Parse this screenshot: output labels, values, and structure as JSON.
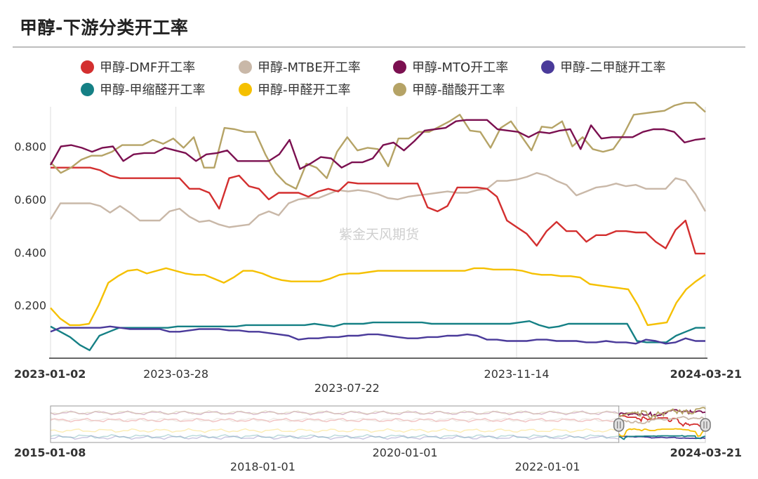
{
  "title": "甲醇-下游分类开工率",
  "watermark": "紫金天风期货",
  "chart_data": {
    "type": "line",
    "ylim": [
      0.0,
      0.95
    ],
    "yticks": [
      0.2,
      0.4,
      0.6,
      0.8
    ],
    "ytick_labels": [
      "0.200",
      "0.400",
      "0.600",
      "0.800"
    ],
    "xrange": [
      "2023-01-02",
      "2024-03-21"
    ],
    "xticks": [
      {
        "date": "2023-01-02",
        "label": "2023-01-02",
        "bold": true,
        "row": 1
      },
      {
        "date": "2023-03-28",
        "label": "2023-03-28",
        "bold": false,
        "row": 1
      },
      {
        "date": "2023-07-22",
        "label": "2023-07-22",
        "bold": false,
        "row": 2
      },
      {
        "date": "2023-11-14",
        "label": "2023-11-14",
        "bold": false,
        "row": 1
      },
      {
        "date": "2024-03-21",
        "label": "2024-03-21",
        "bold": true,
        "row": 1
      }
    ],
    "legend_placement": "top",
    "gridlines": "vertical",
    "series": [
      {
        "name": "甲醇-DMF开工率",
        "color": "#d32f2f",
        "values": [
          0.72,
          0.72,
          0.72,
          0.72,
          0.72,
          0.71,
          0.69,
          0.68,
          0.68,
          0.68,
          0.68,
          0.68,
          0.68,
          0.68,
          0.64,
          0.64,
          0.625,
          0.565,
          0.68,
          0.69,
          0.65,
          0.64,
          0.6,
          0.625,
          0.625,
          0.625,
          0.61,
          0.63,
          0.64,
          0.63,
          0.665,
          0.66,
          0.66,
          0.66,
          0.66,
          0.66,
          0.66,
          0.66,
          0.57,
          0.555,
          0.575,
          0.645,
          0.645,
          0.645,
          0.64,
          0.61,
          0.52,
          0.495,
          0.47,
          0.425,
          0.48,
          0.515,
          0.48,
          0.48,
          0.44,
          0.465,
          0.465,
          0.48,
          0.48,
          0.475,
          0.475,
          0.44,
          0.415,
          0.485,
          0.52,
          0.395,
          0.395
        ]
      },
      {
        "name": "甲醇-MTBE开工率",
        "color": "#c9b8a8",
        "values": [
          0.525,
          0.585,
          0.585,
          0.585,
          0.585,
          0.575,
          0.55,
          0.575,
          0.55,
          0.52,
          0.52,
          0.52,
          0.555,
          0.565,
          0.535,
          0.515,
          0.52,
          0.505,
          0.495,
          0.5,
          0.505,
          0.54,
          0.555,
          0.54,
          0.585,
          0.6,
          0.605,
          0.605,
          0.62,
          0.635,
          0.63,
          0.635,
          0.63,
          0.62,
          0.605,
          0.6,
          0.61,
          0.615,
          0.62,
          0.625,
          0.63,
          0.625,
          0.625,
          0.635,
          0.64,
          0.67,
          0.67,
          0.675,
          0.685,
          0.7,
          0.69,
          0.67,
          0.655,
          0.615,
          0.63,
          0.645,
          0.65,
          0.66,
          0.65,
          0.655,
          0.64,
          0.64,
          0.64,
          0.68,
          0.67,
          0.62,
          0.555
        ]
      },
      {
        "name": "甲醇-MTO开工率",
        "color": "#7b1050",
        "values": [
          0.73,
          0.8,
          0.805,
          0.795,
          0.78,
          0.795,
          0.8,
          0.745,
          0.77,
          0.775,
          0.775,
          0.795,
          0.785,
          0.775,
          0.745,
          0.77,
          0.775,
          0.785,
          0.745,
          0.745,
          0.745,
          0.745,
          0.77,
          0.825,
          0.715,
          0.735,
          0.76,
          0.755,
          0.72,
          0.74,
          0.74,
          0.755,
          0.805,
          0.815,
          0.785,
          0.82,
          0.86,
          0.865,
          0.87,
          0.895,
          0.9,
          0.9,
          0.9,
          0.865,
          0.86,
          0.855,
          0.835,
          0.855,
          0.85,
          0.86,
          0.865,
          0.79,
          0.88,
          0.83,
          0.835,
          0.835,
          0.835,
          0.855,
          0.865,
          0.865,
          0.855,
          0.815,
          0.825,
          0.83
        ]
      },
      {
        "name": "甲醇-二甲醚开工率",
        "color": "#4a3a9a",
        "values": [
          0.1,
          0.115,
          0.115,
          0.115,
          0.115,
          0.115,
          0.12,
          0.115,
          0.11,
          0.11,
          0.11,
          0.11,
          0.1,
          0.1,
          0.105,
          0.11,
          0.11,
          0.11,
          0.105,
          0.105,
          0.1,
          0.1,
          0.095,
          0.09,
          0.085,
          0.07,
          0.075,
          0.075,
          0.08,
          0.08,
          0.085,
          0.085,
          0.09,
          0.09,
          0.085,
          0.08,
          0.075,
          0.075,
          0.08,
          0.08,
          0.085,
          0.085,
          0.09,
          0.085,
          0.07,
          0.07,
          0.065,
          0.065,
          0.065,
          0.07,
          0.07,
          0.065,
          0.065,
          0.065,
          0.06,
          0.06,
          0.065,
          0.06,
          0.06,
          0.055,
          0.07,
          0.065,
          0.055,
          0.06,
          0.075,
          0.065,
          0.065
        ]
      },
      {
        "name": "甲醇-甲缩醛开工率",
        "color": "#158085",
        "values": [
          0.12,
          0.1,
          0.08,
          0.05,
          0.03,
          0.085,
          0.1,
          0.115,
          0.115,
          0.115,
          0.115,
          0.115,
          0.115,
          0.12,
          0.12,
          0.12,
          0.12,
          0.12,
          0.12,
          0.12,
          0.125,
          0.125,
          0.125,
          0.125,
          0.125,
          0.125,
          0.125,
          0.13,
          0.125,
          0.12,
          0.13,
          0.13,
          0.13,
          0.135,
          0.135,
          0.135,
          0.135,
          0.135,
          0.135,
          0.13,
          0.13,
          0.13,
          0.13,
          0.13,
          0.13,
          0.13,
          0.13,
          0.13,
          0.135,
          0.14,
          0.125,
          0.115,
          0.12,
          0.13,
          0.13,
          0.13,
          0.13,
          0.13,
          0.13,
          0.13,
          0.065,
          0.06,
          0.06,
          0.06,
          0.085,
          0.1,
          0.115,
          0.115
        ]
      },
      {
        "name": "甲醇-甲醛开工率",
        "color": "#f5c000",
        "values": [
          0.19,
          0.15,
          0.125,
          0.125,
          0.13,
          0.2,
          0.285,
          0.31,
          0.33,
          0.335,
          0.32,
          0.33,
          0.34,
          0.33,
          0.32,
          0.315,
          0.315,
          0.3,
          0.285,
          0.305,
          0.33,
          0.33,
          0.32,
          0.305,
          0.295,
          0.29,
          0.29,
          0.29,
          0.29,
          0.3,
          0.315,
          0.32,
          0.32,
          0.325,
          0.33,
          0.33,
          0.33,
          0.33,
          0.33,
          0.33,
          0.33,
          0.33,
          0.33,
          0.33,
          0.34,
          0.34,
          0.335,
          0.335,
          0.335,
          0.33,
          0.32,
          0.315,
          0.315,
          0.31,
          0.31,
          0.305,
          0.28,
          0.275,
          0.27,
          0.265,
          0.26,
          0.2,
          0.125,
          0.13,
          0.135,
          0.21,
          0.26,
          0.29,
          0.315
        ]
      },
      {
        "name": "甲醇-醋酸开工率",
        "color": "#b5a366",
        "values": [
          0.74,
          0.7,
          0.72,
          0.75,
          0.765,
          0.765,
          0.78,
          0.805,
          0.805,
          0.805,
          0.825,
          0.81,
          0.83,
          0.795,
          0.835,
          0.72,
          0.72,
          0.87,
          0.865,
          0.855,
          0.855,
          0.77,
          0.7,
          0.66,
          0.64,
          0.735,
          0.72,
          0.68,
          0.78,
          0.835,
          0.785,
          0.795,
          0.79,
          0.725,
          0.83,
          0.83,
          0.855,
          0.855,
          0.875,
          0.895,
          0.92,
          0.86,
          0.855,
          0.795,
          0.87,
          0.895,
          0.84,
          0.785,
          0.875,
          0.87,
          0.895,
          0.8,
          0.835,
          0.79,
          0.78,
          0.79,
          0.845,
          0.92,
          0.925,
          0.93,
          0.935,
          0.955,
          0.965,
          0.965,
          0.93
        ]
      }
    ],
    "navigator": {
      "xrange": [
        "2015-01-08",
        "2024-03-21"
      ],
      "xticks": [
        {
          "date": "2015-01-08",
          "label": "2015-01-08",
          "bold": true,
          "row": 1
        },
        {
          "date": "2018-01-01",
          "label": "2018-01-01",
          "bold": false,
          "row": 2
        },
        {
          "date": "2020-01-01",
          "label": "2020-01-01",
          "bold": false,
          "row": 1
        },
        {
          "date": "2022-01-01",
          "label": "2022-01-01",
          "bold": false,
          "row": 2
        },
        {
          "date": "2024-03-21",
          "label": "2024-03-21",
          "bold": true,
          "row": 1
        }
      ],
      "selected_range": [
        "2023-01-02",
        "2024-03-21"
      ]
    }
  }
}
